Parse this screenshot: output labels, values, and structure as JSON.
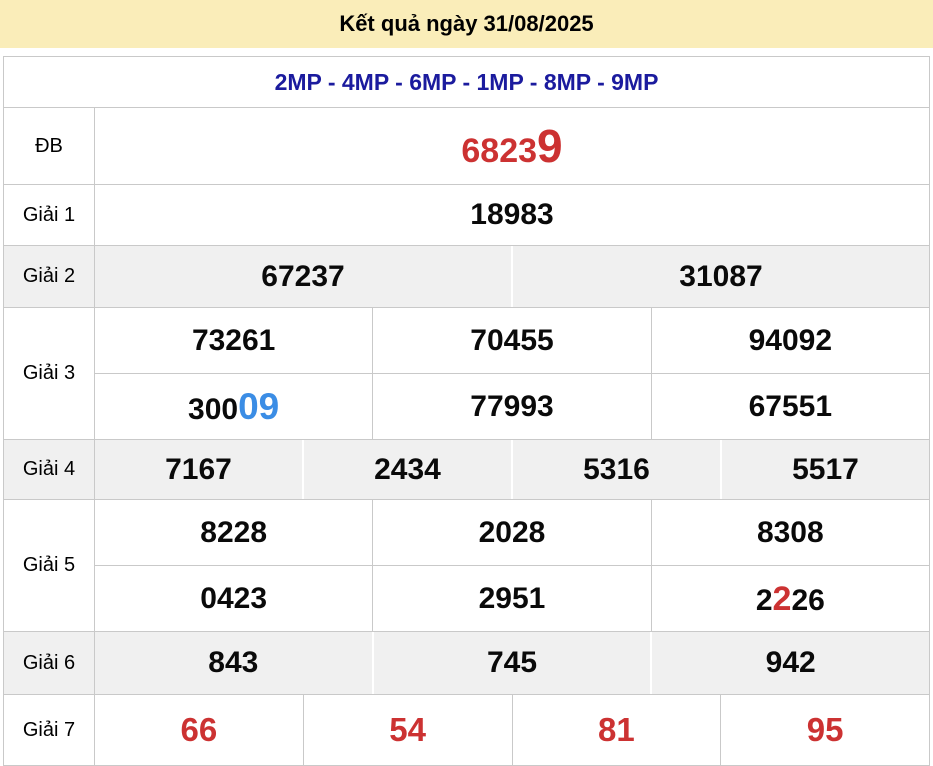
{
  "header": {
    "title": "Kết quả ngày 31/08/2025"
  },
  "station_header": {
    "label": "2MP - 4MP - 6MP - 1MP - 8MP - 9MP"
  },
  "colors": {
    "title_bg": "#FAEDB9",
    "station_text": "#1B1B9E",
    "number_text": "#0A0A0A",
    "highlight_red": "#CC3232",
    "highlight_blue": "#3B8DE5",
    "row_alt_bg": "#F0F0F0",
    "border": "#C9C9C9"
  },
  "prizes": {
    "db": {
      "label": "ĐB",
      "value_prefix": "6823",
      "value_highlight": "9"
    },
    "g1": {
      "label": "Giải 1",
      "value": "18983"
    },
    "g2": {
      "label": "Giải 2",
      "values": [
        "67237",
        "31087"
      ]
    },
    "g3": {
      "label": "Giải 3",
      "row1": [
        "73261",
        "70455",
        "94092"
      ],
      "row2_cell1": {
        "prefix": "300",
        "highlight": "09"
      },
      "row2": [
        "77993",
        "67551"
      ]
    },
    "g4": {
      "label": "Giải 4",
      "values": [
        "7167",
        "2434",
        "5316",
        "5517"
      ]
    },
    "g5": {
      "label": "Giải 5",
      "row1": [
        "8228",
        "2028",
        "8308"
      ],
      "row2": [
        "0423",
        "2951"
      ],
      "row2_cell3": {
        "prefix": "2",
        "highlight": "2",
        "suffix": "26"
      }
    },
    "g6": {
      "label": "Giải 6",
      "values": [
        "843",
        "745",
        "942"
      ]
    },
    "g7": {
      "label": "Giải 7",
      "values": [
        "66",
        "54",
        "81",
        "95"
      ]
    }
  }
}
